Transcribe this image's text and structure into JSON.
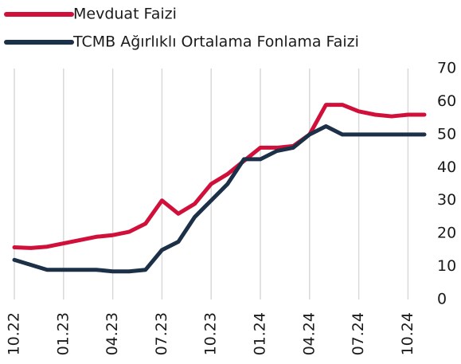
{
  "chart_data": {
    "type": "line",
    "categories": [
      "10.22",
      null,
      null,
      "01.23",
      null,
      null,
      "04.23",
      null,
      null,
      "07.23",
      null,
      null,
      "10.23",
      null,
      null,
      "01.24",
      null,
      null,
      "04.24",
      null,
      null,
      "07.24",
      null,
      null,
      "10.24",
      null
    ],
    "series": [
      {
        "name": "Mevduat Faizi",
        "color": "#d0103a",
        "values": [
          15.8,
          15.6,
          16,
          17,
          18,
          19,
          19.5,
          20.5,
          23,
          30,
          26,
          29,
          35,
          38,
          42,
          46,
          46,
          46.5,
          50,
          59,
          59,
          57,
          56,
          55.5,
          56,
          56
        ]
      },
      {
        "name": "TCMB Ağırlıklı Ortalama Fonlama Faizi",
        "color": "#1c3048",
        "values": [
          12,
          10.5,
          9,
          9,
          9,
          9,
          8.5,
          8.5,
          9,
          15,
          17.5,
          25,
          30,
          35,
          42.5,
          42.5,
          45,
          46,
          50,
          52.5,
          50,
          50,
          50,
          50,
          50,
          50
        ]
      }
    ],
    "ylim": [
      0,
      70
    ],
    "yticks": [
      0,
      10,
      20,
      30,
      40,
      50,
      60,
      70
    ],
    "grid": true,
    "legend": "top-left"
  }
}
